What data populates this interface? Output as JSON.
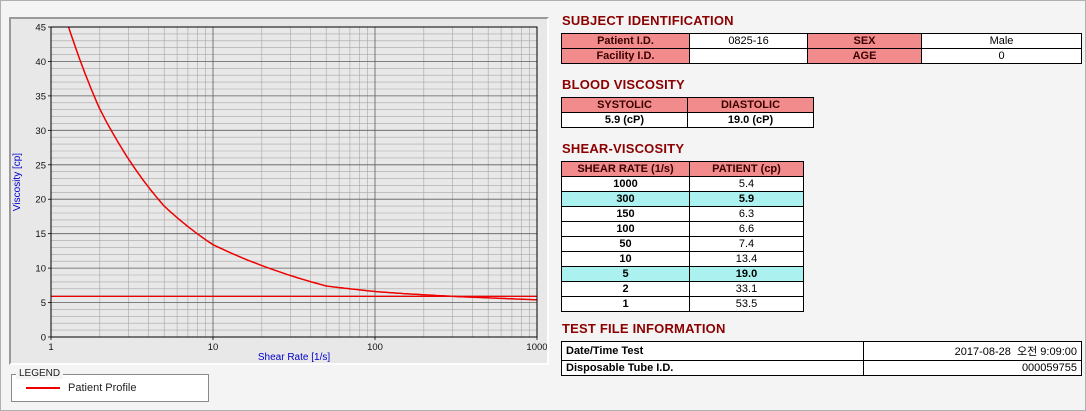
{
  "colors": {
    "heading": "#8b0000",
    "table_header_bg": "#f28b8b",
    "highlight_bg": "#aaf1ef",
    "series_line": "#ee0000",
    "axis_title": "#0000cc"
  },
  "legend": {
    "title": "LEGEND",
    "series_label": "Patient Profile"
  },
  "chart_data": {
    "type": "line",
    "title": "",
    "xlabel": "Shear Rate [1/s]",
    "ylabel": "Viscosity [cp]",
    "x_scale": "log",
    "xlim": [
      1,
      1000
    ],
    "ylim": [
      0,
      45
    ],
    "x_ticks": [
      "1",
      "10",
      "100",
      "1000"
    ],
    "y_ticks": [
      0,
      5,
      10,
      15,
      20,
      25,
      30,
      35,
      40,
      45
    ],
    "grid": true,
    "legend_position": "below-left",
    "series": [
      {
        "name": "Patient Profile",
        "x": [
          1,
          2,
          5,
          10,
          50,
          100,
          150,
          300,
          1000
        ],
        "y": [
          53.5,
          33.1,
          19.0,
          13.4,
          7.4,
          6.6,
          6.3,
          5.9,
          5.4
        ],
        "color": "#ee0000"
      }
    ],
    "reference_line": {
      "y": 5.9,
      "color": "#ee0000"
    }
  },
  "subject_identification": {
    "title": "SUBJECT IDENTIFICATION",
    "rows": [
      {
        "label1": "Patient I.D.",
        "value1": "0825-16",
        "label2": "SEX",
        "value2": "Male"
      },
      {
        "label1": "Facility I.D.",
        "value1": "",
        "label2": "AGE",
        "value2": "0"
      }
    ]
  },
  "blood_viscosity": {
    "title": "BLOOD VISCOSITY",
    "headers": [
      "SYSTOLIC",
      "DIASTOLIC"
    ],
    "values": [
      "5.9 (cP)",
      "19.0 (cP)"
    ]
  },
  "shear_viscosity": {
    "title": "SHEAR-VISCOSITY",
    "headers": [
      "SHEAR RATE (1/s)",
      "PATIENT (cp)"
    ],
    "rows": [
      {
        "shear": "1000",
        "patient": "5.4",
        "highlight": false
      },
      {
        "shear": "300",
        "patient": "5.9",
        "highlight": true
      },
      {
        "shear": "150",
        "patient": "6.3",
        "highlight": false
      },
      {
        "shear": "100",
        "patient": "6.6",
        "highlight": false
      },
      {
        "shear": "50",
        "patient": "7.4",
        "highlight": false
      },
      {
        "shear": "10",
        "patient": "13.4",
        "highlight": false
      },
      {
        "shear": "5",
        "patient": "19.0",
        "highlight": true
      },
      {
        "shear": "2",
        "patient": "33.1",
        "highlight": false
      },
      {
        "shear": "1",
        "patient": "53.5",
        "highlight": false
      }
    ]
  },
  "test_file_information": {
    "title": "TEST FILE INFORMATION",
    "rows": [
      {
        "label": "Date/Time Test",
        "value": "2017-08-28  오전 9:09:00"
      },
      {
        "label": "Disposable Tube I.D.",
        "value": "000059755"
      }
    ]
  }
}
